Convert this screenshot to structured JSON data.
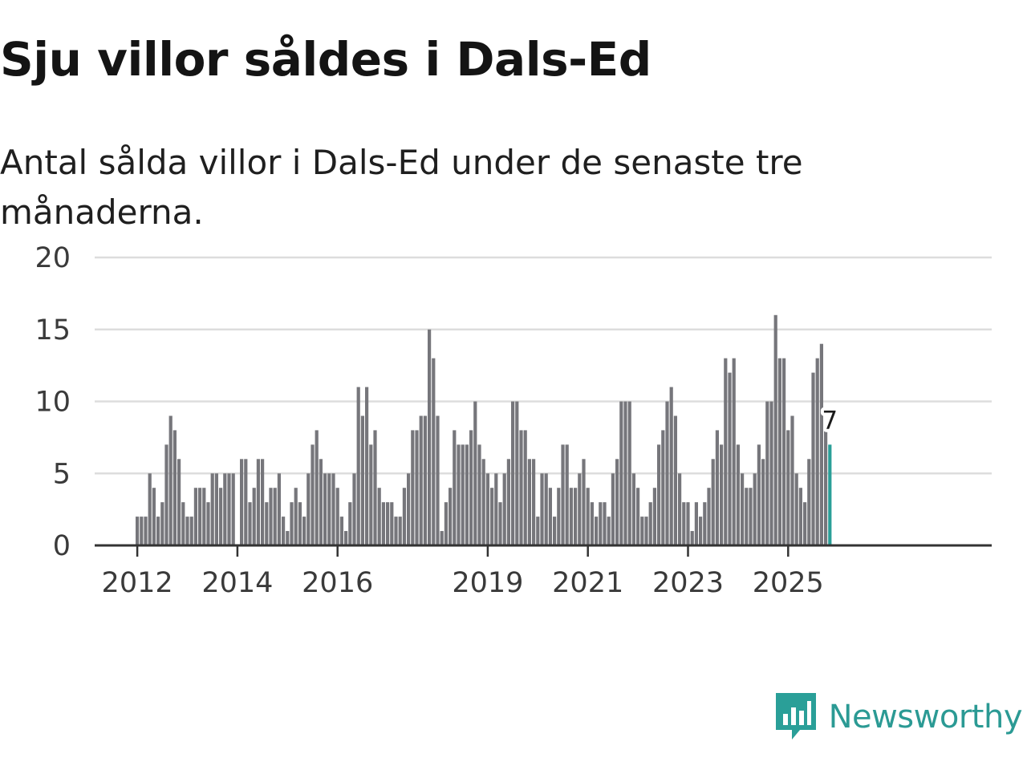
{
  "title": "Sju villor såldes i Dals-Ed",
  "subtitle": "Antal sålda villor i Dals-Ed under de senaste tre månaderna.",
  "brand": {
    "name": "Newsworthy",
    "icon": "newsworthy-logo-icon"
  },
  "colors": {
    "bar": "#76767b",
    "highlight": "#2a9f98",
    "grid": "#dddddd",
    "axis": "#333333"
  },
  "chart_data": {
    "type": "bar",
    "title": "Sju villor såldes i Dals-Ed",
    "xlabel": "",
    "ylabel": "",
    "ylim": [
      0,
      20
    ],
    "yticks": [
      0,
      5,
      10,
      15,
      20
    ],
    "xticks": [
      "2012",
      "2014",
      "2016",
      "2019",
      "2021",
      "2023",
      "2025"
    ],
    "period_start": "2012-01",
    "values": [
      2,
      2,
      2,
      5,
      4,
      2,
      3,
      7,
      9,
      8,
      6,
      3,
      2,
      2,
      4,
      4,
      4,
      3,
      5,
      5,
      4,
      5,
      5,
      5,
      0,
      6,
      6,
      3,
      4,
      6,
      6,
      3,
      4,
      4,
      5,
      2,
      1,
      3,
      4,
      3,
      2,
      5,
      7,
      8,
      6,
      5,
      5,
      5,
      4,
      2,
      1,
      3,
      5,
      11,
      9,
      11,
      7,
      8,
      4,
      3,
      3,
      3,
      2,
      2,
      4,
      5,
      8,
      8,
      9,
      9,
      15,
      13,
      9,
      1,
      3,
      4,
      8,
      7,
      7,
      7,
      8,
      10,
      7,
      6,
      5,
      4,
      5,
      3,
      5,
      6,
      10,
      10,
      8,
      8,
      6,
      6,
      2,
      5,
      5,
      4,
      2,
      4,
      7,
      7,
      4,
      4,
      5,
      6,
      4,
      3,
      2,
      3,
      3,
      2,
      5,
      6,
      10,
      10,
      10,
      5,
      4,
      2,
      2,
      3,
      4,
      7,
      8,
      10,
      11,
      9,
      5,
      3,
      3,
      1,
      3,
      2,
      3,
      4,
      6,
      8,
      7,
      13,
      12,
      13,
      7,
      5,
      4,
      4,
      5,
      7,
      6,
      10,
      10,
      16,
      13,
      13,
      8,
      9,
      5,
      4,
      3,
      6,
      12,
      13,
      14,
      8,
      7
    ],
    "highlight_last": 1,
    "annotation": {
      "label": "7",
      "value": 7
    }
  }
}
